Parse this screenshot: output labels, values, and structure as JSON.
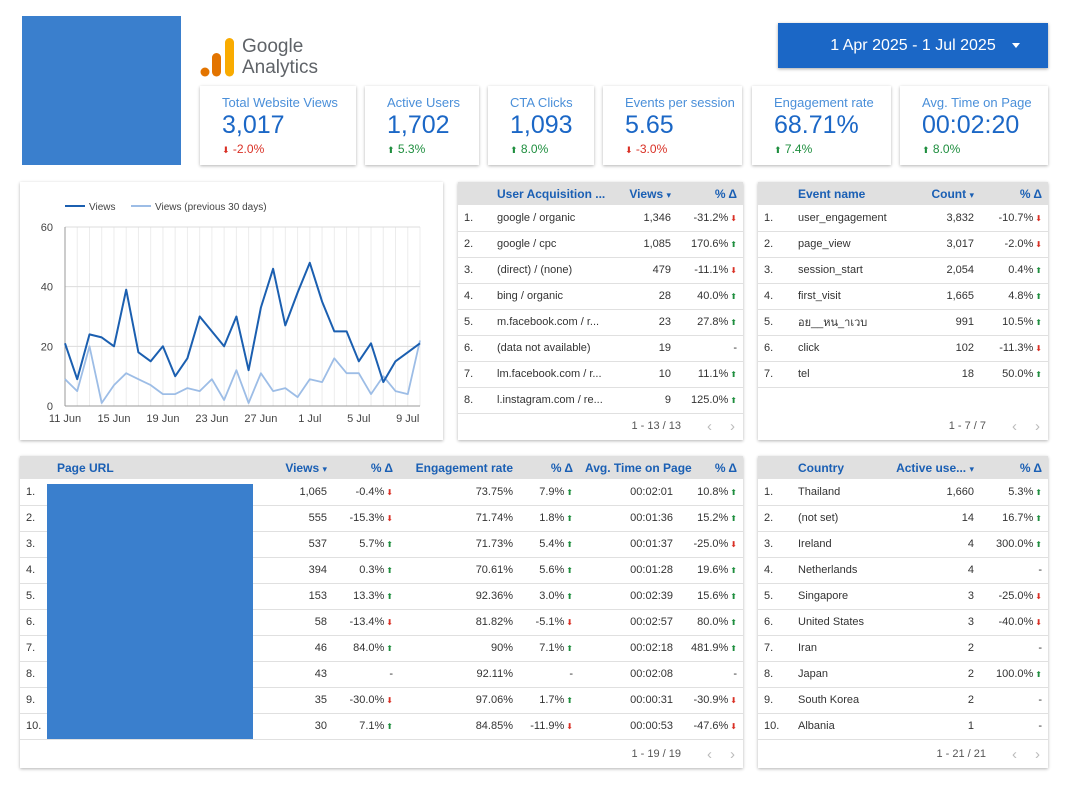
{
  "header": {
    "logo_line1": "Google",
    "logo_line2": "Analytics",
    "date_range": "1 Apr 2025 - 1 Jul 2025"
  },
  "colors": {
    "brand": "#1b67c6",
    "accent_light": "#4a8fd9",
    "up": "#1e8e3e",
    "down": "#d93025"
  },
  "kpis": [
    {
      "label": "Total Website Views",
      "value": "3,017",
      "delta": "-2.0%",
      "dir": "down"
    },
    {
      "label": "Active Users",
      "value": "1,702",
      "delta": "5.3%",
      "dir": "up"
    },
    {
      "label": "CTA Clicks",
      "value": "1,093",
      "delta": "8.0%",
      "dir": "up"
    },
    {
      "label": "Events per session",
      "value": "5.65",
      "delta": "-3.0%",
      "dir": "down"
    },
    {
      "label": "Engagement rate",
      "value": "68.71%",
      "delta": "7.4%",
      "dir": "up"
    },
    {
      "label": "Avg. Time on Page",
      "value": "00:02:20",
      "delta": "8.0%",
      "dir": "up"
    }
  ],
  "chart_data": {
    "type": "line",
    "x": [
      "11 Jun",
      "12 Jun",
      "13 Jun",
      "14 Jun",
      "15 Jun",
      "16 Jun",
      "17 Jun",
      "18 Jun",
      "19 Jun",
      "20 Jun",
      "21 Jun",
      "22 Jun",
      "23 Jun",
      "24 Jun",
      "25 Jun",
      "26 Jun",
      "27 Jun",
      "28 Jun",
      "29 Jun",
      "30 Jun",
      "1 Jul",
      "2 Jul",
      "3 Jul",
      "4 Jul",
      "5 Jul",
      "6 Jul",
      "7 Jul",
      "8 Jul",
      "9 Jul",
      "10 Jul"
    ],
    "xticks": [
      "11 Jun",
      "15 Jun",
      "19 Jun",
      "23 Jun",
      "27 Jun",
      "1 Jul",
      "5 Jul",
      "9 Jul"
    ],
    "series": [
      {
        "name": "Views",
        "color": "#1b5fb0",
        "values": [
          21,
          9,
          24,
          23,
          20,
          39,
          18,
          15,
          20,
          10,
          16,
          30,
          25,
          20,
          30,
          12,
          33,
          46,
          27,
          38,
          48,
          35,
          25,
          25,
          15,
          21,
          8,
          15,
          18,
          21
        ]
      },
      {
        "name": "Views (previous 30 days)",
        "color": "#9dbde6",
        "values": [
          9,
          5,
          20,
          1,
          7,
          11,
          9,
          7,
          4,
          4,
          6,
          5,
          9,
          2,
          12,
          1,
          11,
          5,
          6,
          3,
          9,
          8,
          16,
          11,
          11,
          4,
          10,
          5,
          4,
          22
        ]
      }
    ],
    "ylim": [
      0,
      60
    ],
    "yticks": [
      0,
      20,
      40,
      60
    ],
    "grid": true,
    "legend": "top-left"
  },
  "acquisition": {
    "headers": {
      "name": "User Acquisition ...",
      "views": "Views",
      "delta": "% Δ"
    },
    "rows": [
      {
        "n": "1.",
        "name": "google / organic",
        "views": "1,346",
        "delta": "-31.2%",
        "dir": "down"
      },
      {
        "n": "2.",
        "name": "google / cpc",
        "views": "1,085",
        "delta": "170.6%",
        "dir": "up"
      },
      {
        "n": "3.",
        "name": "(direct) / (none)",
        "views": "479",
        "delta": "-11.1%",
        "dir": "down"
      },
      {
        "n": "4.",
        "name": "bing / organic",
        "views": "28",
        "delta": "40.0%",
        "dir": "up"
      },
      {
        "n": "5.",
        "name": "m.facebook.com / r...",
        "views": "23",
        "delta": "27.8%",
        "dir": "up"
      },
      {
        "n": "6.",
        "name": "(data not available)",
        "views": "19",
        "delta": "-",
        "dir": "none"
      },
      {
        "n": "7.",
        "name": "lm.facebook.com / r...",
        "views": "10",
        "delta": "11.1%",
        "dir": "up"
      },
      {
        "n": "8.",
        "name": "l.instagram.com / re...",
        "views": "9",
        "delta": "125.0%",
        "dir": "up"
      }
    ],
    "pager": "1 - 13 / 13"
  },
  "events": {
    "headers": {
      "name": "Event name",
      "count": "Count",
      "delta": "% Δ"
    },
    "rows": [
      {
        "n": "1.",
        "name": "user_engagement",
        "count": "3,832",
        "delta": "-10.7%",
        "dir": "down"
      },
      {
        "n": "2.",
        "name": "page_view",
        "count": "3,017",
        "delta": "-2.0%",
        "dir": "down"
      },
      {
        "n": "3.",
        "name": "session_start",
        "count": "2,054",
        "delta": "0.4%",
        "dir": "up"
      },
      {
        "n": "4.",
        "name": "first_visit",
        "count": "1,665",
        "delta": "4.8%",
        "dir": "up"
      },
      {
        "n": "5.",
        "name": "อย__หน_าเวบ",
        "count": "991",
        "delta": "10.5%",
        "dir": "up"
      },
      {
        "n": "6.",
        "name": "click",
        "count": "102",
        "delta": "-11.3%",
        "dir": "down"
      },
      {
        "n": "7.",
        "name": "tel",
        "count": "18",
        "delta": "50.0%",
        "dir": "up"
      }
    ],
    "pager": "1 - 7 / 7"
  },
  "pages": {
    "headers": {
      "url": "Page URL",
      "views": "Views",
      "d1": "% Δ",
      "eng": "Engagement rate",
      "d2": "% Δ",
      "time": "Avg. Time on Page",
      "d3": "% Δ"
    },
    "rows": [
      {
        "n": "1.",
        "views": "1,065",
        "d1": "-0.4%",
        "d1dir": "down",
        "eng": "73.75%",
        "d2": "7.9%",
        "d2dir": "up",
        "time": "00:02:01",
        "d3": "10.8%",
        "d3dir": "up"
      },
      {
        "n": "2.",
        "views": "555",
        "d1": "-15.3%",
        "d1dir": "down",
        "eng": "71.74%",
        "d2": "1.8%",
        "d2dir": "up",
        "time": "00:01:36",
        "d3": "15.2%",
        "d3dir": "up"
      },
      {
        "n": "3.",
        "views": "537",
        "d1": "5.7%",
        "d1dir": "up",
        "eng": "71.73%",
        "d2": "5.4%",
        "d2dir": "up",
        "time": "00:01:37",
        "d3": "-25.0%",
        "d3dir": "down"
      },
      {
        "n": "4.",
        "views": "394",
        "d1": "0.3%",
        "d1dir": "up",
        "eng": "70.61%",
        "d2": "5.6%",
        "d2dir": "up",
        "time": "00:01:28",
        "d3": "19.6%",
        "d3dir": "up"
      },
      {
        "n": "5.",
        "views": "153",
        "d1": "13.3%",
        "d1dir": "up",
        "eng": "92.36%",
        "d2": "3.0%",
        "d2dir": "up",
        "time": "00:02:39",
        "d3": "15.6%",
        "d3dir": "up"
      },
      {
        "n": "6.",
        "views": "58",
        "d1": "-13.4%",
        "d1dir": "down",
        "eng": "81.82%",
        "d2": "-5.1%",
        "d2dir": "down",
        "time": "00:02:57",
        "d3": "80.0%",
        "d3dir": "up"
      },
      {
        "n": "7.",
        "views": "46",
        "d1": "84.0%",
        "d1dir": "up",
        "eng": "90%",
        "d2": "7.1%",
        "d2dir": "up",
        "time": "00:02:18",
        "d3": "481.9%",
        "d3dir": "up"
      },
      {
        "n": "8.",
        "views": "43",
        "d1": "-",
        "d1dir": "none",
        "eng": "92.11%",
        "d2": "-",
        "d2dir": "none",
        "time": "00:02:08",
        "d3": "-",
        "d3dir": "none"
      },
      {
        "n": "9.",
        "views": "35",
        "d1": "-30.0%",
        "d1dir": "down",
        "eng": "97.06%",
        "d2": "1.7%",
        "d2dir": "up",
        "time": "00:00:31",
        "d3": "-30.9%",
        "d3dir": "down"
      },
      {
        "n": "10.",
        "views": "30",
        "d1": "7.1%",
        "d1dir": "up",
        "eng": "84.85%",
        "d2": "-11.9%",
        "d2dir": "down",
        "time": "00:00:53",
        "d3": "-47.6%",
        "d3dir": "down"
      }
    ],
    "pager": "1 - 19 / 19"
  },
  "countries": {
    "headers": {
      "name": "Country",
      "users": "Active use...",
      "delta": "% Δ"
    },
    "rows": [
      {
        "n": "1.",
        "name": "Thailand",
        "users": "1,660",
        "delta": "5.3%",
        "dir": "up"
      },
      {
        "n": "2.",
        "name": "(not set)",
        "users": "14",
        "delta": "16.7%",
        "dir": "up"
      },
      {
        "n": "3.",
        "name": "Ireland",
        "users": "4",
        "delta": "300.0%",
        "dir": "up"
      },
      {
        "n": "4.",
        "name": "Netherlands",
        "users": "4",
        "delta": "-",
        "dir": "none"
      },
      {
        "n": "5.",
        "name": "Singapore",
        "users": "3",
        "delta": "-25.0%",
        "dir": "down"
      },
      {
        "n": "6.",
        "name": "United States",
        "users": "3",
        "delta": "-40.0%",
        "dir": "down"
      },
      {
        "n": "7.",
        "name": "Iran",
        "users": "2",
        "delta": "-",
        "dir": "none"
      },
      {
        "n": "8.",
        "name": "Japan",
        "users": "2",
        "delta": "100.0%",
        "dir": "up"
      },
      {
        "n": "9.",
        "name": "South Korea",
        "users": "2",
        "delta": "-",
        "dir": "none"
      },
      {
        "n": "10.",
        "name": "Albania",
        "users": "1",
        "delta": "-",
        "dir": "none"
      }
    ],
    "pager": "1 - 21 / 21"
  }
}
